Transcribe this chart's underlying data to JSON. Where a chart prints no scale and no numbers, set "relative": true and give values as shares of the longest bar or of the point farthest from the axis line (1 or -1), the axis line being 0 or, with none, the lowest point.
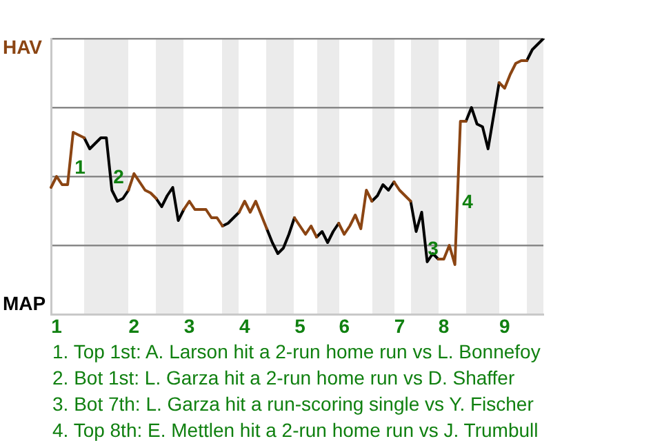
{
  "chart_data": {
    "type": "line",
    "categories": [
      null,
      "1",
      null,
      null,
      null,
      null,
      null,
      null,
      null,
      null,
      null,
      null,
      null,
      null,
      null,
      "2",
      null,
      null,
      null,
      null,
      null,
      null,
      null,
      null,
      null,
      "3",
      null,
      null,
      null,
      null,
      null,
      null,
      null,
      null,
      null,
      "4",
      null,
      null,
      null,
      null,
      null,
      null,
      null,
      null,
      null,
      "5",
      null,
      null,
      null,
      null,
      null,
      null,
      null,
      "6",
      null,
      null,
      null,
      null,
      null,
      null,
      null,
      null,
      null,
      "7",
      null,
      null,
      null,
      null,
      null,
      null,
      null,
      "8",
      null,
      null,
      null,
      null,
      null,
      null,
      null,
      null,
      null,
      null,
      "9",
      null,
      null,
      null,
      null,
      null,
      null,
      null
    ],
    "relative": true,
    "series": [
      {
        "color": "#8b4513",
        "values": [
          0.46,
          0.5,
          0.47,
          0.47,
          0.66,
          0.65,
          0.64,
          null,
          null,
          null,
          null,
          null,
          null,
          null,
          0.45,
          0.51,
          0.48,
          0.45,
          0.44,
          0.42,
          null,
          null,
          null,
          null,
          0.38,
          0.41,
          0.38,
          0.38,
          0.38,
          0.35,
          0.35,
          0.32,
          null,
          null,
          0.37,
          0.41,
          0.37,
          0.41,
          0.36,
          0.31,
          null,
          null,
          null,
          null,
          0.35,
          0.32,
          0.29,
          0.32,
          0.28,
          null,
          null,
          null,
          0.33,
          0.29,
          0.32,
          0.36,
          0.31,
          0.45,
          0.41,
          null,
          null,
          null,
          0.48,
          0.45,
          0.43,
          0.41,
          null,
          null,
          null,
          null,
          0.2,
          0.2,
          0.25,
          0.18,
          0.7,
          0.7,
          null,
          null,
          null,
          null,
          null,
          0.84,
          0.82,
          0.87,
          0.91,
          0.92,
          0.92,
          null,
          null,
          null
        ]
      },
      {
        "color": "#000000",
        "values": [
          null,
          null,
          null,
          null,
          null,
          null,
          0.64,
          0.6,
          0.62,
          0.64,
          0.64,
          0.45,
          0.41,
          0.42,
          0.45,
          null,
          null,
          null,
          null,
          0.42,
          0.39,
          0.43,
          0.46,
          0.34,
          0.38,
          null,
          null,
          null,
          null,
          null,
          null,
          0.32,
          0.33,
          0.35,
          0.37,
          null,
          null,
          null,
          null,
          0.31,
          0.26,
          0.22,
          0.24,
          0.29,
          0.35,
          null,
          null,
          null,
          0.28,
          0.3,
          0.26,
          0.3,
          0.33,
          null,
          null,
          null,
          null,
          null,
          0.41,
          0.43,
          0.47,
          0.45,
          0.48,
          null,
          null,
          0.41,
          0.3,
          0.37,
          0.19,
          0.22,
          0.2,
          null,
          null,
          null,
          null,
          0.7,
          0.75,
          0.69,
          0.68,
          0.6,
          0.72,
          0.84,
          null,
          null,
          null,
          null,
          0.92,
          0.96,
          0.98,
          1.0
        ]
      }
    ],
    "grid": "y",
    "marker": "none",
    "legend": false,
    "annotations": [
      "HAV",
      "MAP",
      "1",
      "2",
      "3",
      "4",
      "1. Top 1st: A. Larson hit a 2-run home run vs L. Bonnefoy",
      "2. Bot 1st: L. Garza hit a 2-run home run vs D. Shaffer",
      "3. Bot 7th: L. Garza hit a run-scoring single vs Y. Fischer",
      "4. Top 8th: E. Mettlen hit a 2-run home run vs J. Trumbull"
    ]
  }
}
